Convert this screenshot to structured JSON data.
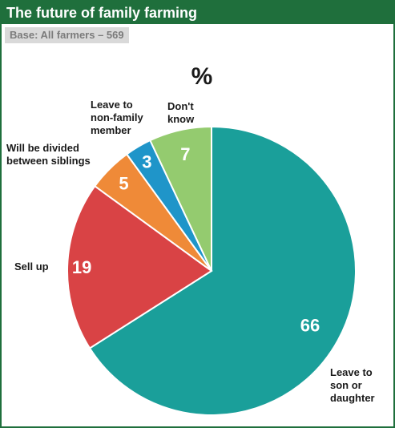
{
  "header": {
    "title": "The future of family farming",
    "base": "Base: All farmers – 569"
  },
  "colors": {
    "brand_green": "#1f6f3c",
    "teal": "#1a9f9a",
    "red": "#d94345",
    "orange": "#ef8a38",
    "blue": "#1f95c9",
    "light_green": "#94cb6f"
  },
  "chart_data": {
    "type": "pie",
    "unit": "%",
    "slices": [
      {
        "label": "Leave to son or daughter",
        "label_lines": [
          "Leave to",
          "son or",
          "daughter"
        ],
        "value": 66,
        "color": "#1a9f9a"
      },
      {
        "label": "Sell up",
        "label_lines": [
          "Sell up"
        ],
        "value": 19,
        "color": "#d94345"
      },
      {
        "label": "Will be divided between siblings",
        "label_lines": [
          "Will be divided",
          "between siblings"
        ],
        "value": 5,
        "color": "#ef8a38"
      },
      {
        "label": "Leave to non-family member",
        "label_lines": [
          "Leave to",
          "non-family",
          "member"
        ],
        "value": 3,
        "color": "#1f95c9"
      },
      {
        "label": "Don't know",
        "label_lines": [
          "Don't",
          "know"
        ],
        "value": 7,
        "color": "#94cb6f"
      }
    ]
  }
}
